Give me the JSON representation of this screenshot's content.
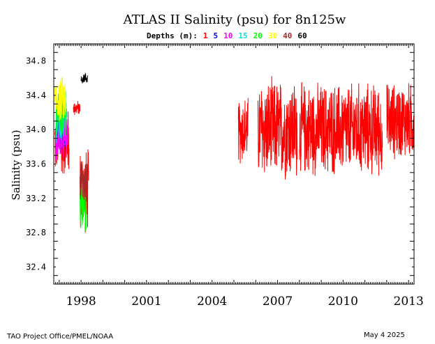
{
  "chart_data": {
    "type": "line",
    "title": "ATLAS II Salinity (psu) for 8n125w",
    "legend_label": "Depths (m):",
    "ylabel": "Salinity (psu)",
    "xlabel": "",
    "ylim": [
      32.2,
      35.0
    ],
    "xlim": [
      1996.75,
      2013.25
    ],
    "y_ticks": [
      "32.4",
      "32.8",
      "33.2",
      "33.6",
      "34.0",
      "34.4",
      "34.8"
    ],
    "x_ticks": [
      "1998",
      "2001",
      "2004",
      "2007",
      "2010",
      "2013"
    ],
    "legend_placement": "top",
    "grid": false,
    "series": [
      {
        "name": "1",
        "color": "#ff0000",
        "segments": [
          {
            "start": 1996.8,
            "end": 1997.45,
            "base": 33.85,
            "amp": 0.45
          },
          {
            "start": 1997.65,
            "end": 1997.95,
            "base": 34.25,
            "amp": 0.1
          },
          {
            "start": 1997.95,
            "end": 1998.35,
            "base": 33.3,
            "amp": 0.55
          },
          {
            "start": 2005.2,
            "end": 2005.65,
            "base": 34.0,
            "amp": 0.45
          },
          {
            "start": 2006.1,
            "end": 2007.9,
            "base": 34.0,
            "amp": 0.65
          },
          {
            "start": 2008.0,
            "end": 2011.8,
            "base": 34.0,
            "amp": 0.6
          },
          {
            "start": 2012.0,
            "end": 2013.25,
            "base": 34.1,
            "amp": 0.5
          }
        ]
      },
      {
        "name": "5",
        "color": "#0000ff",
        "segments": [
          {
            "start": 1996.85,
            "end": 1997.3,
            "base": 34.0,
            "amp": 0.3
          }
        ]
      },
      {
        "name": "10",
        "color": "#ff00ff",
        "segments": [
          {
            "start": 1996.85,
            "end": 1997.4,
            "base": 33.9,
            "amp": 0.3
          }
        ]
      },
      {
        "name": "15",
        "color": "#00e0e0",
        "segments": [
          {
            "start": 1996.85,
            "end": 1997.35,
            "base": 34.1,
            "amp": 0.3
          }
        ]
      },
      {
        "name": "20",
        "color": "#00ff00",
        "segments": [
          {
            "start": 1996.85,
            "end": 1997.3,
            "base": 34.2,
            "amp": 0.3
          },
          {
            "start": 1997.95,
            "end": 1998.25,
            "base": 33.1,
            "amp": 0.35
          }
        ]
      },
      {
        "name": "30",
        "color": "#ffff00",
        "segments": [
          {
            "start": 1996.8,
            "end": 1997.3,
            "base": 34.35,
            "amp": 0.3
          }
        ]
      },
      {
        "name": "40",
        "color": "#a52a2a",
        "segments": [
          {
            "start": 1997.95,
            "end": 1998.3,
            "base": 33.4,
            "amp": 0.35
          }
        ]
      },
      {
        "name": "60",
        "color": "#000000",
        "segments": [
          {
            "start": 1998.0,
            "end": 1998.3,
            "base": 34.6,
            "amp": 0.07
          }
        ]
      }
    ]
  },
  "footer": {
    "left": "TAO Project Office/PMEL/NOAA",
    "right": "May  4 2025"
  }
}
